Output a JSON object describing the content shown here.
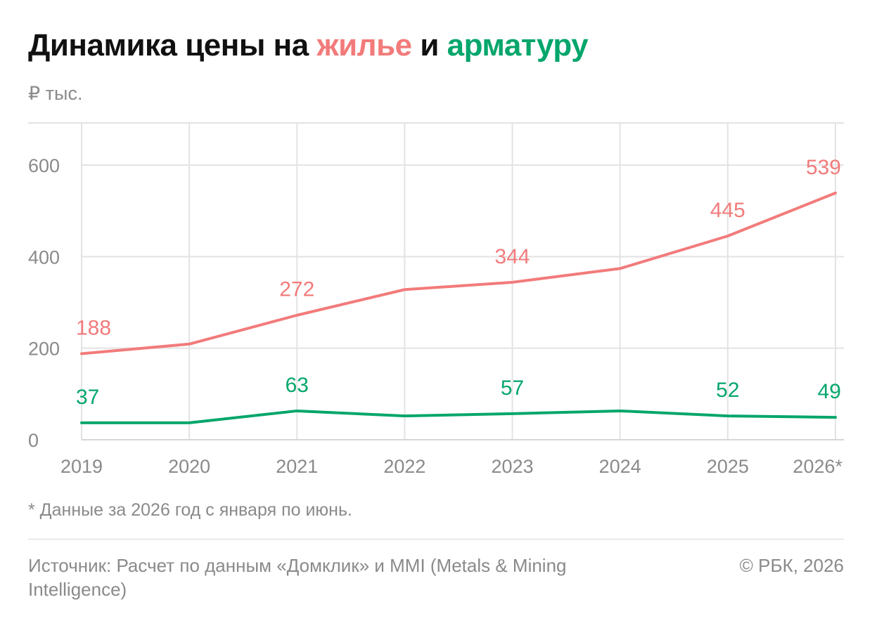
{
  "header": {
    "title_part1": "Динамика цены на ",
    "title_highlight1": "жилье",
    "title_part2": " и ",
    "title_highlight2": "арматуру"
  },
  "unit_label": "₽ тыс.",
  "footnote": "* Данные за 2026 год с января по июнь.",
  "source": "Источник: Расчет по данным «Домклик» и MMI (Metals & Mining Intelligence)",
  "copyright": "© РБК, 2026",
  "colors": {
    "housing": "#f27b7b",
    "rebar": "#05a66b",
    "grid": "#e3e3e3",
    "axis_text": "#8a8a8a"
  },
  "chart_data": {
    "type": "line",
    "categories": [
      "2019",
      "2020",
      "2021",
      "2022",
      "2023",
      "2024",
      "2025",
      "2026*"
    ],
    "ylim": [
      0,
      600
    ],
    "yticks": [
      0,
      200,
      400,
      600
    ],
    "grid": true,
    "series": [
      {
        "name": "жилье",
        "color": "#f27b7b",
        "values": [
          188,
          209,
          272,
          328,
          344,
          374,
          445,
          539
        ],
        "labels": [
          "188",
          "",
          "272",
          "",
          "344",
          "",
          "445",
          "539"
        ]
      },
      {
        "name": "арматуру",
        "color": "#05a66b",
        "values": [
          37,
          37,
          63,
          52,
          57,
          63,
          52,
          49
        ],
        "labels": [
          "37",
          "",
          "63",
          "",
          "57",
          "",
          "52",
          "49"
        ]
      }
    ]
  }
}
